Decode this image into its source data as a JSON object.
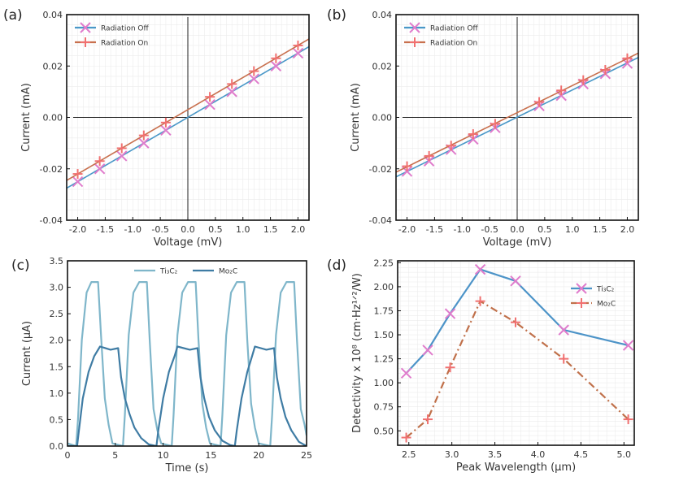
{
  "chart_data": [
    {
      "label": "(a)",
      "type": "line",
      "xlabel": "Voltage (mV)",
      "ylabel": "Current (mA)",
      "xlim": [
        -2.2,
        2.2
      ],
      "ylim": [
        -0.04,
        0.04
      ],
      "xticks": [
        "-2.0",
        "-1.5",
        "-1.0",
        "-0.5",
        "0.0",
        "0.5",
        "1.0",
        "1.5",
        "2.0"
      ],
      "yticks": [
        "-0.04",
        "-0.02",
        "0.00",
        "0.02",
        "0.04"
      ],
      "grid": true,
      "reference_lines": {
        "x": 0,
        "y": 0
      },
      "legend_position": "top-left",
      "series": [
        {
          "name": "Radiation Off",
          "line_color": "#4a98c8",
          "marker": "x",
          "marker_color": "#e07ccc",
          "x": [
            -2.0,
            -1.6,
            -1.2,
            -0.8,
            -0.4,
            0.4,
            0.8,
            1.2,
            1.6,
            2.0
          ],
          "y": [
            -0.025,
            -0.02,
            -0.015,
            -0.01,
            -0.005,
            0.005,
            0.01,
            0.015,
            0.02,
            0.025
          ]
        },
        {
          "name": "Radiation On",
          "line_color": "#c8704e",
          "marker": "+",
          "marker_color": "#f07070",
          "x": [
            -2.0,
            -1.6,
            -1.2,
            -0.8,
            -0.4,
            0.4,
            0.8,
            1.2,
            1.6,
            2.0
          ],
          "y": [
            -0.022,
            -0.017,
            -0.012,
            -0.007,
            -0.002,
            0.008,
            0.013,
            0.018,
            0.023,
            0.028
          ]
        }
      ]
    },
    {
      "label": "(b)",
      "type": "line",
      "xlabel": "Voltage (mV)",
      "ylabel": "Current (mA)",
      "xlim": [
        -2.2,
        2.2
      ],
      "ylim": [
        -0.04,
        0.04
      ],
      "xticks": [
        "-2.0",
        "-1.5",
        "-1.0",
        "-0.5",
        "0.0",
        "0.5",
        "1.0",
        "1.5",
        "2.0"
      ],
      "yticks": [
        "-0.04",
        "-0.02",
        "0.00",
        "0.02",
        "0.04"
      ],
      "grid": true,
      "reference_lines": {
        "x": 0,
        "y": 0
      },
      "legend_position": "top-left",
      "series": [
        {
          "name": "Radiation Off",
          "line_color": "#4a98c8",
          "marker": "x",
          "marker_color": "#e07ccc",
          "x": [
            -2.0,
            -1.6,
            -1.2,
            -0.8,
            -0.4,
            0.4,
            0.8,
            1.2,
            1.6,
            2.0
          ],
          "y": [
            -0.021,
            -0.017,
            -0.0125,
            -0.0085,
            -0.004,
            0.0045,
            0.0085,
            0.013,
            0.017,
            0.021
          ]
        },
        {
          "name": "Radiation On",
          "line_color": "#c8704e",
          "marker": "+",
          "marker_color": "#f07070",
          "x": [
            -2.0,
            -1.6,
            -1.2,
            -0.8,
            -0.4,
            0.4,
            0.8,
            1.2,
            1.6,
            2.0
          ],
          "y": [
            -0.019,
            -0.015,
            -0.011,
            -0.0065,
            -0.0025,
            0.006,
            0.0105,
            0.0145,
            0.0185,
            0.023
          ]
        }
      ]
    },
    {
      "label": "(c)",
      "type": "line",
      "xlabel": "Time (s)",
      "ylabel": "Current (μA)",
      "xlim": [
        0,
        25
      ],
      "ylim": [
        0,
        3.5
      ],
      "xticks": [
        "0",
        "5",
        "10",
        "15",
        "20",
        "25"
      ],
      "yticks": [
        "0.0",
        "0.5",
        "1.0",
        "1.5",
        "2.0",
        "2.5",
        "3.0",
        "3.5"
      ],
      "grid": false,
      "legend_position": "top-center",
      "series": [
        {
          "name": "Ti₃C₂",
          "line_color": "#7fb6ca",
          "x": [
            0,
            0.9,
            1.1,
            1.5,
            2.0,
            2.5,
            3.2,
            3.5,
            3.9,
            4.3,
            4.7,
            5.8,
            6.0,
            6.4,
            6.9,
            7.5,
            8.3,
            8.6,
            9.0,
            9.4,
            9.8,
            10.9,
            11.1,
            11.5,
            12.0,
            12.6,
            13.4,
            13.7,
            14.1,
            14.5,
            14.9,
            16.0,
            16.2,
            16.6,
            17.1,
            17.7,
            18.5,
            18.8,
            19.2,
            19.6,
            20.0,
            21.2,
            21.4,
            21.8,
            22.3,
            22.9,
            23.7,
            24.0,
            24.4,
            24.8,
            25
          ],
          "y": [
            0.05,
            0.0,
            0.5,
            2.0,
            2.9,
            3.1,
            3.1,
            2.1,
            0.9,
            0.4,
            0.05,
            0.0,
            0.6,
            2.1,
            2.9,
            3.1,
            3.1,
            2.0,
            0.7,
            0.3,
            0.05,
            0.0,
            0.6,
            2.1,
            2.9,
            3.1,
            3.1,
            2.0,
            0.8,
            0.35,
            0.05,
            0.0,
            0.6,
            2.1,
            2.9,
            3.1,
            3.1,
            2.0,
            0.8,
            0.35,
            0.05,
            0.0,
            0.6,
            2.1,
            2.9,
            3.1,
            3.1,
            2.0,
            0.7,
            0.4,
            0.2
          ]
        },
        {
          "name": "Mo₂C",
          "line_color": "#3f7ca4",
          "x": [
            0,
            1.0,
            1.2,
            1.6,
            2.2,
            2.8,
            3.4,
            4.5,
            5.3,
            5.6,
            6.0,
            6.5,
            7.0,
            7.7,
            8.5,
            9.3,
            9.5,
            10.0,
            10.6,
            11.2,
            11.5,
            12.8,
            13.6,
            13.9,
            14.3,
            14.8,
            15.4,
            16.2,
            17.0,
            17.5,
            17.7,
            18.2,
            18.8,
            19.3,
            19.6,
            20.8,
            21.6,
            21.9,
            22.3,
            22.8,
            23.4,
            24.2,
            25
          ],
          "y": [
            0.0,
            0.0,
            0.3,
            0.9,
            1.4,
            1.7,
            1.88,
            1.82,
            1.85,
            1.3,
            0.9,
            0.6,
            0.35,
            0.15,
            0.03,
            0.0,
            0.3,
            0.9,
            1.4,
            1.7,
            1.88,
            1.82,
            1.85,
            1.3,
            0.9,
            0.55,
            0.3,
            0.1,
            0.02,
            0.0,
            0.3,
            0.9,
            1.4,
            1.7,
            1.88,
            1.82,
            1.85,
            1.3,
            0.9,
            0.55,
            0.3,
            0.08,
            0.0
          ]
        }
      ]
    },
    {
      "label": "(d)",
      "type": "line",
      "xlabel": "Peak Wavelength (μm)",
      "ylabel": "Detectivity x 10⁸ (cm·Hz¹ᐟ²/W)",
      "xlim": [
        2.37,
        5.12
      ],
      "ylim": [
        0.35,
        2.27
      ],
      "xticks": [
        "2.5",
        "3.0",
        "3.5",
        "4.0",
        "4.5",
        "5.0"
      ],
      "yticks": [
        "0.50",
        "0.75",
        "1.00",
        "1.25",
        "1.50",
        "1.75",
        "2.00",
        "2.25"
      ],
      "grid": true,
      "legend_position": "right",
      "series": [
        {
          "name": "Ti₃C₂",
          "line_color": "#4d94c8",
          "line_style": "solid",
          "marker": "x",
          "marker_color": "#e07ccc",
          "x": [
            2.47,
            2.72,
            2.98,
            3.33,
            3.74,
            4.3,
            5.05
          ],
          "y": [
            1.1,
            1.34,
            1.72,
            2.18,
            2.06,
            1.55,
            1.39
          ]
        },
        {
          "name": "Mo₂C",
          "line_color": "#c0704a",
          "line_style": "dashdot",
          "marker": "+",
          "marker_color": "#f07070",
          "x": [
            2.47,
            2.72,
            2.98,
            3.33,
            3.74,
            4.3,
            5.05
          ],
          "y": [
            0.43,
            0.62,
            1.16,
            1.85,
            1.63,
            1.25,
            0.62
          ]
        }
      ]
    }
  ]
}
